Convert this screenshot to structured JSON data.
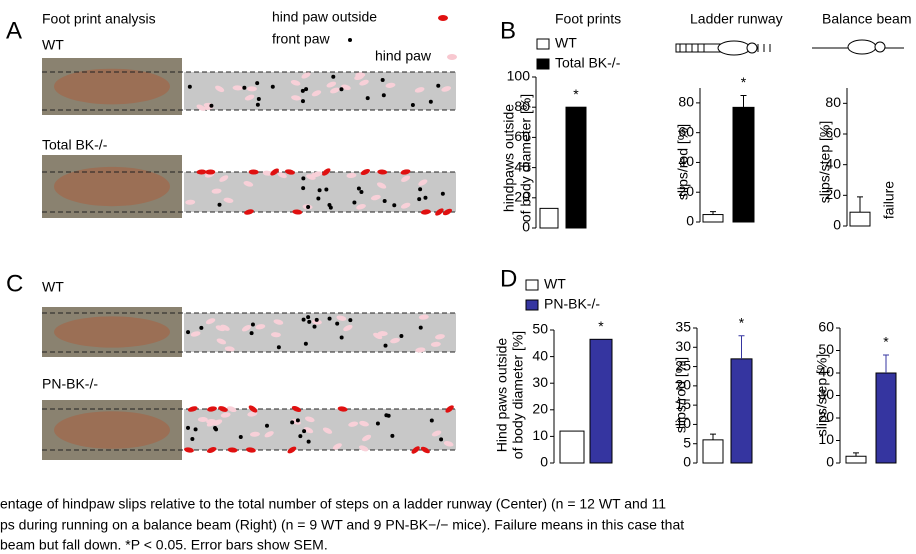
{
  "panels": {
    "a": {
      "letter": "A",
      "title": "Foot print analysis",
      "wt": "WT",
      "ko": "Total BK-/-",
      "legend": [
        "hind paw outside",
        "front paw",
        "hind paw"
      ]
    },
    "b": {
      "letter": "B"
    },
    "c": {
      "letter": "C",
      "wt": "WT",
      "ko": "PN-BK-/-"
    },
    "d": {
      "letter": "D"
    }
  },
  "chart_data": [
    {
      "type": "bar",
      "title": "Foot prints",
      "ylabel": [
        "hindpaws outside",
        "of body diameter [%]"
      ],
      "ylim": [
        0,
        100
      ],
      "yticks": [
        0,
        20,
        40,
        60,
        80,
        100
      ],
      "series": [
        {
          "name": "WT",
          "color": "#ffffff",
          "values": [
            13
          ]
        },
        {
          "name": "Total BK-/-",
          "color": "#000000",
          "values": [
            80
          ]
        }
      ],
      "annotations": [
        "*"
      ]
    },
    {
      "type": "bar",
      "title": "Ladder runway",
      "ylabel": [
        "slips/rod [%]"
      ],
      "ylim": [
        0,
        90
      ],
      "yticks": [
        0,
        20,
        40,
        60,
        80
      ],
      "series": [
        {
          "color": "#ffffff",
          "values": [
            5
          ],
          "errors": [
            2
          ]
        },
        {
          "color": "#000000",
          "values": [
            77
          ],
          "errors": [
            8
          ]
        }
      ],
      "annotations": [
        "*"
      ]
    },
    {
      "type": "bar",
      "title": "Balance beam",
      "ylabel": [
        "slips/step [%]"
      ],
      "ylim": [
        0,
        90
      ],
      "yticks": [
        0,
        20,
        40,
        60,
        80
      ],
      "series": [
        {
          "color": "#ffffff",
          "values": [
            9
          ],
          "errors": [
            10
          ]
        },
        {
          "color": "#000000",
          "values": [
            null
          ]
        }
      ],
      "annotations": [
        "failure"
      ]
    },
    {
      "type": "bar",
      "ylabel": [
        "Hind paws outside",
        "of body diameter [%]"
      ],
      "ylim": [
        0,
        50
      ],
      "yticks": [
        0,
        10,
        20,
        30,
        40,
        50
      ],
      "series": [
        {
          "name": "WT",
          "color": "#ffffff",
          "values": [
            12
          ]
        },
        {
          "name": "PN-BK-/-",
          "color": "#3535a0",
          "values": [
            46.5
          ]
        }
      ],
      "annotations": [
        "*"
      ]
    },
    {
      "type": "bar",
      "ylabel": [
        "slips/rod [%]"
      ],
      "ylim": [
        0,
        35
      ],
      "yticks": [
        0,
        5,
        10,
        15,
        20,
        25,
        30,
        35
      ],
      "series": [
        {
          "color": "#ffffff",
          "values": [
            6
          ],
          "errors": [
            1.5
          ]
        },
        {
          "color": "#3535a0",
          "values": [
            27
          ],
          "errors": [
            6
          ]
        }
      ],
      "annotations": [
        "*"
      ]
    },
    {
      "type": "bar",
      "ylabel": [
        "slips/step [%]"
      ],
      "ylim": [
        0,
        60
      ],
      "yticks": [
        0,
        10,
        20,
        30,
        40,
        50,
        60
      ],
      "series": [
        {
          "color": "#ffffff",
          "values": [
            3
          ],
          "errors": [
            1.5
          ]
        },
        {
          "color": "#3535a0",
          "values": [
            40
          ],
          "errors": [
            8
          ]
        }
      ],
      "annotations": [
        "*"
      ]
    }
  ],
  "caption": [
    "entage of hindpaw slips relative to the total number of steps on a ladder runway (Center) (n = 12 WT and 11",
    "ps during running on a balance beam (Right) (n = 9 WT and 9 PN-BK−/− mice). Failure means in this case that",
    "beam but fall down. *P < 0.05. Error bars show SEM."
  ]
}
